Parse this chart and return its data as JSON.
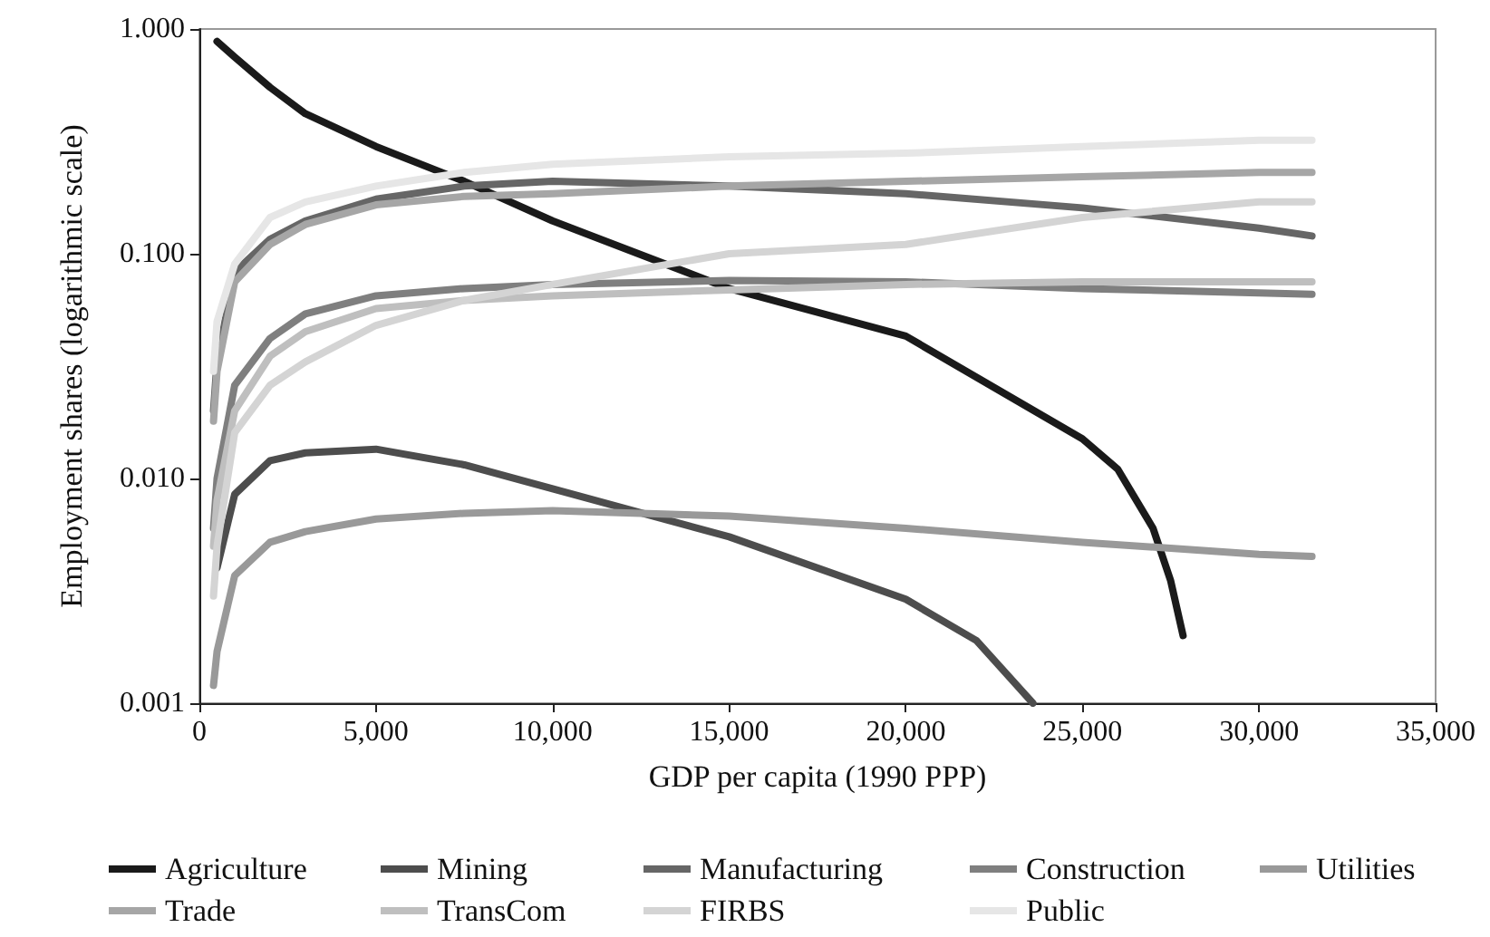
{
  "chart_data": {
    "type": "line",
    "xlabel": "GDP per capita (1990 PPP)",
    "ylabel": "Employment shares (logarithmic scale)",
    "x": [
      400,
      500,
      1000,
      2000,
      3000,
      5000,
      7500,
      10000,
      15000,
      20000,
      25000,
      30000,
      31500
    ],
    "series": [
      {
        "name": "Agriculture",
        "color": "#1a1a1a",
        "x": [
          500,
          1000,
          2000,
          3000,
          5000,
          7500,
          10000,
          15000,
          20000,
          25000,
          26000,
          27000,
          27500,
          27850
        ],
        "values": [
          0.88,
          0.75,
          0.55,
          0.42,
          0.3,
          0.21,
          0.14,
          0.07,
          0.043,
          0.015,
          0.011,
          0.006,
          0.0035,
          0.002
        ]
      },
      {
        "name": "Mining",
        "color": "#4d4d4d",
        "x": [
          500,
          1000,
          2000,
          3000,
          5000,
          7500,
          10000,
          15000,
          20000,
          22000,
          23600
        ],
        "values": [
          0.004,
          0.0085,
          0.012,
          0.013,
          0.0135,
          0.0115,
          0.009,
          0.0055,
          0.0029,
          0.0019,
          0.001
        ]
      },
      {
        "name": "Manufacturing",
        "color": "#666666",
        "values": [
          0.02,
          0.033,
          0.083,
          0.116,
          0.14,
          0.175,
          0.2,
          0.21,
          0.2,
          0.185,
          0.16,
          0.13,
          0.12
        ]
      },
      {
        "name": "Construction",
        "color": "#7f7f7f",
        "values": [
          0.006,
          0.01,
          0.026,
          0.042,
          0.054,
          0.065,
          0.07,
          0.073,
          0.076,
          0.075,
          0.07,
          0.067,
          0.066
        ]
      },
      {
        "name": "Utilities",
        "color": "#999999",
        "values": [
          0.0012,
          0.0017,
          0.0037,
          0.0052,
          0.0058,
          0.0066,
          0.007,
          0.0072,
          0.0068,
          0.006,
          0.0052,
          0.0046,
          0.0045
        ]
      },
      {
        "name": "Trade",
        "color": "#a6a6a6",
        "values": [
          0.018,
          0.03,
          0.075,
          0.11,
          0.135,
          0.165,
          0.18,
          0.185,
          0.2,
          0.21,
          0.22,
          0.23,
          0.23
        ]
      },
      {
        "name": "TransCom",
        "color": "#bfbfbf",
        "values": [
          0.005,
          0.008,
          0.02,
          0.035,
          0.045,
          0.057,
          0.062,
          0.065,
          0.069,
          0.073,
          0.075,
          0.075,
          0.075
        ]
      },
      {
        "name": "FIRBS",
        "color": "#d4d4d4",
        "values": [
          0.003,
          0.005,
          0.016,
          0.026,
          0.033,
          0.048,
          0.062,
          0.073,
          0.1,
          0.11,
          0.145,
          0.17,
          0.17
        ]
      },
      {
        "name": "Public",
        "color": "#e6e6e6",
        "values": [
          0.03,
          0.05,
          0.09,
          0.145,
          0.17,
          0.2,
          0.23,
          0.25,
          0.27,
          0.28,
          0.3,
          0.32,
          0.32
        ]
      }
    ],
    "xlim": [
      0,
      35000
    ],
    "xticks": [
      0,
      {
        "value": 5000,
        "label": "5,000"
      },
      {
        "value": 10000,
        "label": "10,000"
      },
      {
        "value": 15000,
        "label": "15,000"
      },
      {
        "value": 20000,
        "label": "20,000"
      },
      {
        "value": 25000,
        "label": "25,000"
      },
      {
        "value": 30000,
        "label": "30,000"
      },
      {
        "value": 35000,
        "label": "35,000"
      }
    ],
    "ylim": [
      0.001,
      1
    ],
    "yticks": [
      {
        "value": 0.001,
        "label": "0.001"
      },
      {
        "value": 0.01,
        "label": "0.010"
      },
      {
        "value": 0.1,
        "label": "0.100"
      },
      {
        "value": 1,
        "label": "1.000"
      }
    ],
    "log": "y",
    "grid": false,
    "legend": "bottom",
    "marker": "none",
    "line_style": "solid"
  }
}
